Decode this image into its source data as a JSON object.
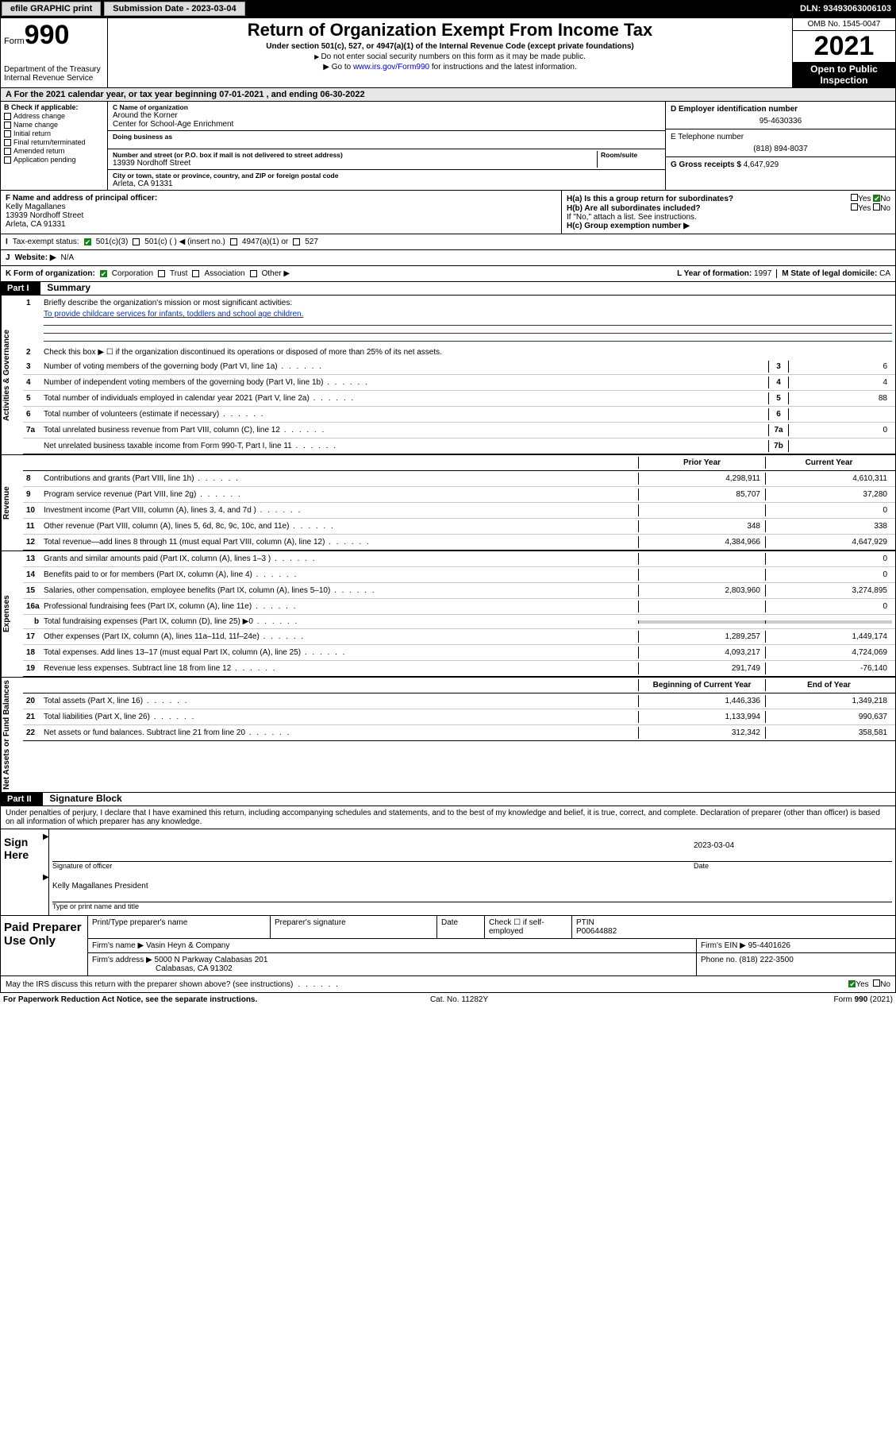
{
  "topbar": {
    "efile": "efile GRAPHIC print",
    "submission_label": "Submission Date - 2023-03-04",
    "dln": "DLN: 93493063006103"
  },
  "header": {
    "form_label": "Form",
    "form_number": "990",
    "title": "Return of Organization Exempt From Income Tax",
    "subtitle": "Under section 501(c), 527, or 4947(a)(1) of the Internal Revenue Code (except private foundations)",
    "note1": "Do not enter social security numbers on this form as it may be made public.",
    "note2_prefix": "Go to ",
    "note2_link": "www.irs.gov/Form990",
    "note2_suffix": " for instructions and the latest information.",
    "dept": "Department of the Treasury\nInternal Revenue Service",
    "omb": "OMB No. 1545-0047",
    "year": "2021",
    "open": "Open to Public Inspection"
  },
  "period": {
    "text": "For the 2021 calendar year, or tax year beginning 07-01-2021   , and ending 06-30-2022"
  },
  "sectionB": {
    "label": "B Check if applicable:",
    "items": [
      "Address change",
      "Name change",
      "Initial return",
      "Final return/terminated",
      "Amended return",
      "Application pending"
    ]
  },
  "sectionC": {
    "name_label": "C Name of organization",
    "name_line1": "Around the Korner",
    "name_line2": "Center for School-Age Enrichment",
    "dba_label": "Doing business as",
    "addr_label": "Number and street (or P.O. box if mail is not delivered to street address)",
    "room_label": "Room/suite",
    "street": "13939 Nordhoff Street",
    "city_label": "City or town, state or province, country, and ZIP or foreign postal code",
    "city": "Arleta, CA  91331"
  },
  "sectionD": {
    "label": "D Employer identification number",
    "value": "95-4630336"
  },
  "sectionE": {
    "label": "E Telephone number",
    "value": "(818) 894-8037"
  },
  "sectionG": {
    "label": "G Gross receipts $",
    "value": "4,647,929"
  },
  "sectionF": {
    "label": "F Name and address of principal officer:",
    "name": "Kelly Magallanes",
    "street": "13939 Nordhoff Street",
    "city": "Arleta, CA  91331"
  },
  "sectionH": {
    "a": "H(a)  Is this a group return for subordinates?",
    "a_no": "No",
    "b": "H(b)  Are all subordinates included?",
    "b_note": "If \"No,\" attach a list. See instructions.",
    "c": "H(c)  Group exemption number ▶"
  },
  "sectionI": {
    "label": "Tax-exempt status:",
    "c3": "501(c)(3)",
    "c": "501(c) (   ) ◀ (insert no.)",
    "a1": "4947(a)(1) or",
    "s527": "527"
  },
  "sectionJ": {
    "label": "Website: ▶",
    "value": "N/A"
  },
  "sectionK": {
    "label": "K Form of organization:",
    "corp": "Corporation",
    "trust": "Trust",
    "assoc": "Association",
    "other": "Other ▶"
  },
  "sectionL": {
    "label": "L Year of formation:",
    "value": "1997"
  },
  "sectionM": {
    "label": "M State of legal domicile:",
    "value": "CA"
  },
  "part1": {
    "header": "Part I",
    "title": "Summary",
    "line1_label": "Briefly describe the organization's mission or most significant activities:",
    "line1_text": "To provide childcare services for infants, toddlers and school age children.",
    "line2_label": "Check this box ▶ ☐ if the organization discontinued its operations or disposed of more than 25% of its net assets.",
    "rows_gov": [
      {
        "n": "3",
        "desc": "Number of voting members of the governing body (Part VI, line 1a)",
        "box": "3",
        "val": "6"
      },
      {
        "n": "4",
        "desc": "Number of independent voting members of the governing body (Part VI, line 1b)",
        "box": "4",
        "val": "4"
      },
      {
        "n": "5",
        "desc": "Total number of individuals employed in calendar year 2021 (Part V, line 2a)",
        "box": "5",
        "val": "88"
      },
      {
        "n": "6",
        "desc": "Total number of volunteers (estimate if necessary)",
        "box": "6",
        "val": ""
      },
      {
        "n": "7a",
        "desc": "Total unrelated business revenue from Part VIII, column (C), line 12",
        "box": "7a",
        "val": "0"
      },
      {
        "n": "",
        "desc": "Net unrelated business taxable income from Form 990-T, Part I, line 11",
        "box": "7b",
        "val": ""
      }
    ],
    "col_hdr_prior": "Prior Year",
    "col_hdr_current": "Current Year",
    "rows_rev": [
      {
        "n": "8",
        "desc": "Contributions and grants (Part VIII, line 1h)",
        "prior": "4,298,911",
        "cur": "4,610,311"
      },
      {
        "n": "9",
        "desc": "Program service revenue (Part VIII, line 2g)",
        "prior": "85,707",
        "cur": "37,280"
      },
      {
        "n": "10",
        "desc": "Investment income (Part VIII, column (A), lines 3, 4, and 7d )",
        "prior": "",
        "cur": "0"
      },
      {
        "n": "11",
        "desc": "Other revenue (Part VIII, column (A), lines 5, 6d, 8c, 9c, 10c, and 11e)",
        "prior": "348",
        "cur": "338"
      },
      {
        "n": "12",
        "desc": "Total revenue—add lines 8 through 11 (must equal Part VIII, column (A), line 12)",
        "prior": "4,384,966",
        "cur": "4,647,929"
      }
    ],
    "rows_exp": [
      {
        "n": "13",
        "desc": "Grants and similar amounts paid (Part IX, column (A), lines 1–3 )",
        "prior": "",
        "cur": "0"
      },
      {
        "n": "14",
        "desc": "Benefits paid to or for members (Part IX, column (A), line 4)",
        "prior": "",
        "cur": "0"
      },
      {
        "n": "15",
        "desc": "Salaries, other compensation, employee benefits (Part IX, column (A), lines 5–10)",
        "prior": "2,803,960",
        "cur": "3,274,895"
      },
      {
        "n": "16a",
        "desc": "Professional fundraising fees (Part IX, column (A), line 11e)",
        "prior": "",
        "cur": "0"
      },
      {
        "n": "b",
        "desc": "Total fundraising expenses (Part IX, column (D), line 25) ▶0",
        "prior": "SHADE",
        "cur": "SHADE",
        "indent": true
      },
      {
        "n": "17",
        "desc": "Other expenses (Part IX, column (A), lines 11a–11d, 11f–24e)",
        "prior": "1,289,257",
        "cur": "1,449,174"
      },
      {
        "n": "18",
        "desc": "Total expenses. Add lines 13–17 (must equal Part IX, column (A), line 25)",
        "prior": "4,093,217",
        "cur": "4,724,069"
      },
      {
        "n": "19",
        "desc": "Revenue less expenses. Subtract line 18 from line 12",
        "prior": "291,749",
        "cur": "-76,140"
      }
    ],
    "col_hdr_begin": "Beginning of Current Year",
    "col_hdr_end": "End of Year",
    "rows_net": [
      {
        "n": "20",
        "desc": "Total assets (Part X, line 16)",
        "prior": "1,446,336",
        "cur": "1,349,218"
      },
      {
        "n": "21",
        "desc": "Total liabilities (Part X, line 26)",
        "prior": "1,133,994",
        "cur": "990,637"
      },
      {
        "n": "22",
        "desc": "Net assets or fund balances. Subtract line 21 from line 20",
        "prior": "312,342",
        "cur": "358,581"
      }
    ],
    "side_gov": "Activities & Governance",
    "side_rev": "Revenue",
    "side_exp": "Expenses",
    "side_net": "Net Assets or Fund Balances"
  },
  "part2": {
    "header": "Part II",
    "title": "Signature Block",
    "penalty": "Under penalties of perjury, I declare that I have examined this return, including accompanying schedules and statements, and to the best of my knowledge and belief, it is true, correct, and complete. Declaration of preparer (other than officer) is based on all information of which preparer has any knowledge.",
    "sign_here": "Sign Here",
    "sig_officer": "Signature of officer",
    "sig_date_label": "Date",
    "sig_date": "2023-03-04",
    "officer_name": "Kelly Magallanes  President",
    "officer_type": "Type or print name and title",
    "paid_label": "Paid Preparer Use Only",
    "p_name_label": "Print/Type preparer's name",
    "p_sig_label": "Preparer's signature",
    "p_date_label": "Date",
    "p_check": "Check ☐ if self-employed",
    "p_ptin_label": "PTIN",
    "p_ptin": "P00644882",
    "firm_name_label": "Firm's name    ▶",
    "firm_name": "Vasin Heyn & Company",
    "firm_ein_label": "Firm's EIN ▶",
    "firm_ein": "95-4401626",
    "firm_addr_label": "Firm's address ▶",
    "firm_addr1": "5000 N Parkway Calabasas 201",
    "firm_addr2": "Calabasas, CA  91302",
    "firm_phone_label": "Phone no.",
    "firm_phone": "(818) 222-3500",
    "discuss": "May the IRS discuss this return with the preparer shown above? (see instructions)",
    "yes": "Yes",
    "no": "No"
  },
  "footer": {
    "left": "For Paperwork Reduction Act Notice, see the separate instructions.",
    "mid": "Cat. No. 11282Y",
    "right": "Form 990 (2021)"
  }
}
